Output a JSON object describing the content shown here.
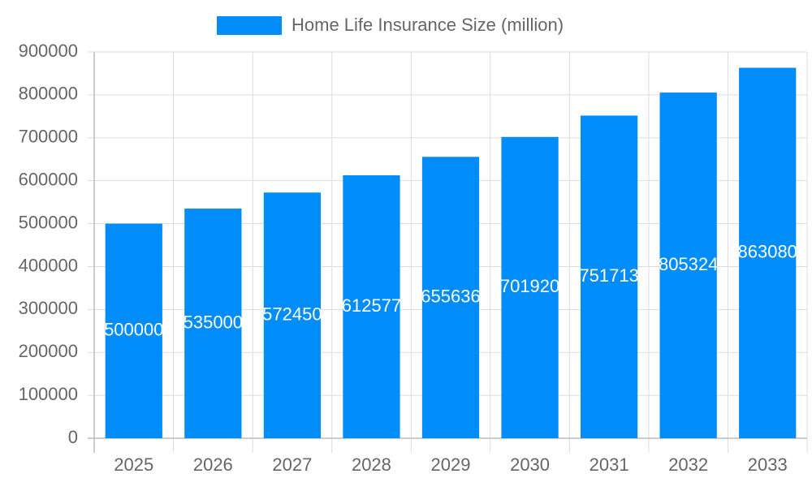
{
  "chart_data": {
    "type": "bar",
    "legend_label": "Home Life Insurance Size (million)",
    "categories": [
      "2025",
      "2026",
      "2027",
      "2028",
      "2029",
      "2030",
      "2031",
      "2032",
      "2033"
    ],
    "values": [
      500000,
      535000,
      572450,
      612577,
      655636,
      701920,
      751713,
      805324,
      863080
    ],
    "color": "#008cf9",
    "ylim": [
      0,
      900000
    ],
    "yticks": [
      0,
      100000,
      200000,
      300000,
      400000,
      500000,
      600000,
      700000,
      800000,
      900000
    ],
    "grid": true,
    "legend": "top"
  }
}
